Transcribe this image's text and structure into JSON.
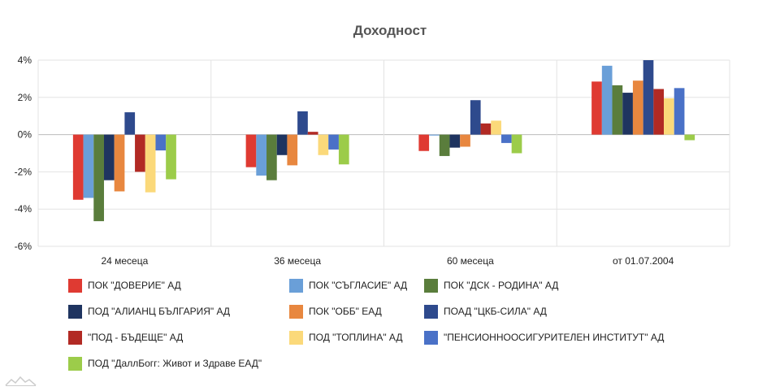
{
  "chart_data": {
    "type": "bar",
    "title": "Доходност",
    "categories": [
      "24 месеца",
      "36 месеца",
      "60 месеца",
      "от 01.07.2004"
    ],
    "y_ticks": [
      "4%",
      "2%",
      "0%",
      "-2%",
      "-4%",
      "-6%"
    ],
    "ylim": [
      -6,
      4
    ],
    "grid": true,
    "legend_placement": "bottom",
    "series": [
      {
        "name": "ПОК \"ДОВЕРИЕ\" АД",
        "color": "#df3a32",
        "values": [
          -3.5,
          -1.75,
          -0.88,
          2.85
        ]
      },
      {
        "name": "ПОК \"СЪГЛАСИЕ\" АД",
        "color": "#6a9fd8",
        "values": [
          -3.4,
          -2.2,
          -0.05,
          3.7
        ]
      },
      {
        "name": "ПОК \"ДСК - РОДИНА\" АД",
        "color": "#5a7d3c",
        "values": [
          -4.65,
          -2.45,
          -1.15,
          2.65
        ]
      },
      {
        "name": "ПОД \"АЛИАНЦ БЪЛГАРИЯ\" АД",
        "color": "#1f3460",
        "values": [
          -2.45,
          -1.1,
          -0.7,
          2.25
        ]
      },
      {
        "name": "ПОК \"ОББ\" ЕАД",
        "color": "#e8873f",
        "values": [
          -3.05,
          -1.65,
          -0.65,
          2.9
        ]
      },
      {
        "name": "ПОАД \"ЦКБ-СИЛА\" АД",
        "color": "#2e4a8d",
        "values": [
          1.2,
          1.25,
          1.85,
          4.0
        ]
      },
      {
        "name": "\"ПОД - БЪДЕЩЕ\" АД",
        "color": "#b22a24",
        "values": [
          -2.0,
          0.15,
          0.6,
          2.45
        ]
      },
      {
        "name": "ПОД \"ТОПЛИНА\" АД",
        "color": "#fbd97a",
        "values": [
          -3.1,
          -1.1,
          0.75,
          1.95
        ]
      },
      {
        "name": "\"ПЕНСИОННООСИГУРИТЕЛЕН ИНСТИТУТ\" АД",
        "color": "#4a71c7",
        "values": [
          -0.85,
          -0.8,
          -0.45,
          2.5
        ]
      },
      {
        "name": "ПОД \"ДаллБогг: Живот и Здраве ЕАД\"",
        "color": "#9ccc4a",
        "values": [
          -2.4,
          -1.6,
          -1.0,
          -0.3
        ]
      }
    ]
  }
}
